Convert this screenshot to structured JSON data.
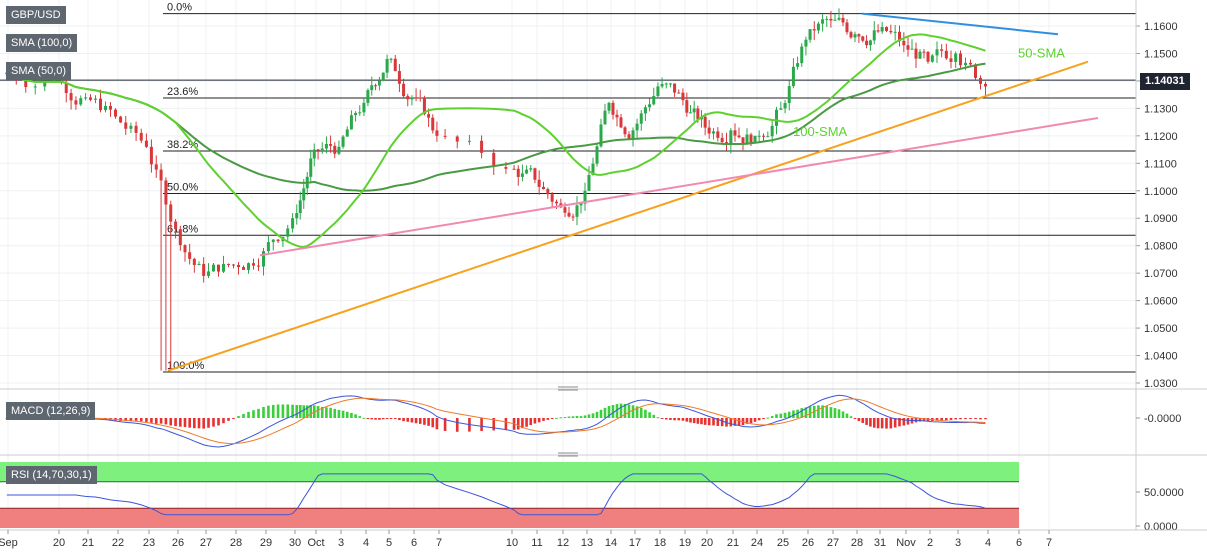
{
  "symbol": "GBP/USD",
  "current_price": "1.14031",
  "indicators": {
    "sma100": "SMA (100,0)",
    "sma50": "SMA (50,0)",
    "macd": "MACD (12,26,9)",
    "rsi": "RSI (14,70,30,1)"
  },
  "colors": {
    "up_candle": "#2aa84a",
    "down_candle": "#d9383a",
    "sma100": "#4a9a44",
    "sma50": "#5ed12f",
    "main_trendline": "#f6a21c",
    "support_trendline": "#f08ab0",
    "resistance_trendline": "#2f8fe0",
    "macd_line": "#3b56d9",
    "signal_line": "#f07a2a",
    "rsi_line": "#3b56d9",
    "rsi_overbought_zone": "#7ef07e",
    "rsi_oversold_zone": "#f08080"
  },
  "chart_data": {
    "type": "candlestick",
    "symbol": "GBP/USD",
    "y_range": [
      1.03,
      1.165
    ],
    "y_ticks": [
      "1.1600",
      "1.1500",
      "1.1400",
      "1.1300",
      "1.1200",
      "1.1100",
      "1.1000",
      "1.0900",
      "1.0800",
      "1.0700",
      "1.0600",
      "1.0500",
      "1.0400",
      "1.0300"
    ],
    "x_ticks": [
      "Sep",
      "20",
      "21",
      "22",
      "23",
      "26",
      "27",
      "28",
      "29",
      "30",
      "Oct",
      "3",
      "4",
      "5",
      "6",
      "7",
      "10",
      "11",
      "12",
      "13",
      "14",
      "17",
      "18",
      "19",
      "20",
      "21",
      "24",
      "25",
      "26",
      "27",
      "28",
      "31",
      "Nov",
      "2",
      "3",
      "4",
      "6",
      "7"
    ],
    "current_price": 1.14031,
    "candles_per_day": 6,
    "day_closes": [
      1.14,
      1.134,
      1.127,
      1.116,
      1.086,
      1.069,
      1.073,
      1.078,
      1.09,
      1.115,
      1.116,
      1.132,
      1.148,
      1.134,
      1.12,
      1.108,
      1.104,
      1.094,
      1.1,
      1.132,
      1.122,
      1.138,
      1.133,
      1.123,
      1.122,
      1.12,
      1.13,
      1.155,
      1.162,
      1.157,
      1.158,
      1.153,
      1.147,
      1.15,
      1.138
    ],
    "fibonacci": [
      {
        "label": "0.0%",
        "value": 1.1645
      },
      {
        "label": "23.6%",
        "value": 1.1338
      },
      {
        "label": "38.2%",
        "value": 1.1145
      },
      {
        "label": "50.0%",
        "value": 1.099
      },
      {
        "label": "61.8%",
        "value": 1.0838
      },
      {
        "label": "100.0%",
        "value": 1.034
      }
    ],
    "sma_annotations": [
      {
        "label": "50-SMA"
      },
      {
        "label": "100-SMA"
      }
    ],
    "macd": {
      "title": "MACD (12,26,9)",
      "tick": "-0.0000"
    },
    "rsi": {
      "title": "RSI (14,70,30,1)",
      "ticks": [
        "50.0000",
        "0.0000"
      ],
      "overbought": 70,
      "oversold": 30
    }
  }
}
